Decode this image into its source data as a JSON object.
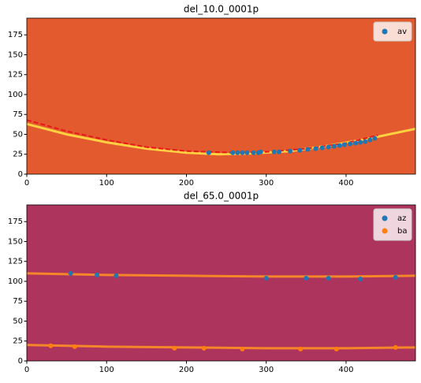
{
  "chart_data": [
    {
      "type": "scatter",
      "title": "del_10.0_0001p",
      "background": "#e35a2e",
      "xlim": [
        0,
        487
      ],
      "ylim": [
        0,
        196
      ],
      "xticks": [
        0,
        100,
        200,
        300,
        400
      ],
      "yticks": [
        0,
        25,
        50,
        75,
        100,
        125,
        150,
        175
      ],
      "legend": "upper right",
      "series": [
        {
          "kind": "line",
          "color": "#ffd040",
          "style": "solid",
          "x": [
            0,
            50,
            100,
            150,
            200,
            240,
            280,
            330,
            380,
            430,
            487
          ],
          "values": [
            63,
            50,
            40,
            32,
            27,
            25,
            26,
            29,
            36,
            45,
            57
          ]
        },
        {
          "kind": "line",
          "color": "#e8181a",
          "style": "dashed",
          "x": [
            0,
            50,
            100,
            150,
            200,
            260,
            300,
            350,
            400,
            440
          ],
          "values": [
            68,
            54,
            43,
            34,
            29,
            27,
            28,
            32,
            39,
            49
          ]
        },
        {
          "name": "av",
          "color": "#1f77b4",
          "x": [
            228,
            258,
            264,
            270,
            276,
            284,
            290,
            293,
            310,
            316,
            330,
            342,
            352,
            362,
            370,
            378,
            385,
            392,
            398,
            405,
            412,
            418,
            424,
            430,
            436
          ],
          "values": [
            27,
            27,
            27,
            27,
            27,
            27,
            27,
            28,
            28,
            28,
            29,
            30,
            31,
            32,
            33,
            34,
            35,
            36,
            37,
            38,
            39,
            40,
            41,
            43,
            45
          ]
        }
      ]
    },
    {
      "type": "scatter",
      "title": "del_65.0_0001p",
      "background": "#ad345c",
      "xlim": [
        0,
        487
      ],
      "ylim": [
        0,
        196
      ],
      "xticks": [
        0,
        100,
        200,
        300,
        400
      ],
      "yticks": [
        0,
        25,
        50,
        75,
        100,
        125,
        150,
        175
      ],
      "legend": "upper right",
      "series": [
        {
          "kind": "line",
          "color": "#f5862a",
          "style": "solid",
          "x": [
            0,
            100,
            200,
            300,
            400,
            487
          ],
          "values": [
            110,
            108,
            107,
            106,
            106,
            107
          ]
        },
        {
          "kind": "line",
          "color": "#f5862a",
          "style": "solid",
          "x": [
            0,
            100,
            200,
            300,
            400,
            487
          ],
          "values": [
            20,
            18,
            17,
            16,
            16,
            17
          ]
        },
        {
          "name": "az",
          "color": "#1f77b4",
          "x": [
            55,
            88,
            112,
            300,
            350,
            378,
            418,
            462
          ],
          "values": [
            110,
            108,
            107,
            104,
            104,
            104,
            103,
            105
          ]
        },
        {
          "name": "ba",
          "color": "#ff7f0e",
          "x": [
            30,
            60,
            185,
            222,
            270,
            343,
            388,
            462
          ],
          "values": [
            19,
            18,
            16,
            16,
            15,
            15,
            15,
            17
          ]
        }
      ]
    }
  ]
}
